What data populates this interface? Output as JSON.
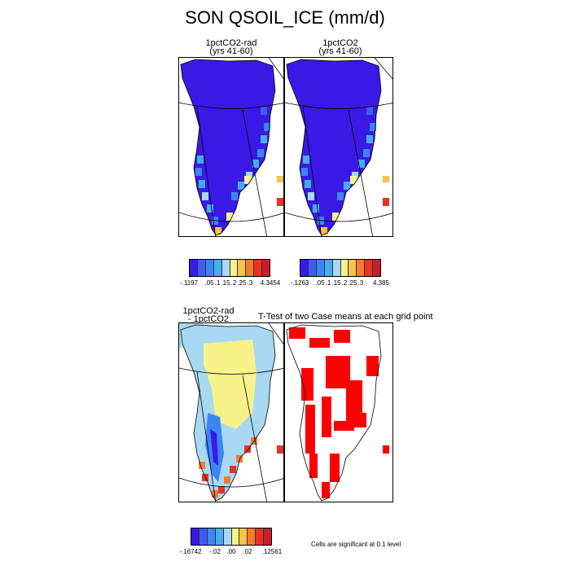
{
  "title": "SON QSOIL_ICE (mm/d)",
  "panels": {
    "top_left": {
      "title_line1": "1pctCO2-rad",
      "title_line2": "(yrs 41-60)"
    },
    "top_right": {
      "title_line1": "1pctCO2",
      "title_line2": "(yrs 41-60)"
    },
    "bottom_left": {
      "title_line1": "1pctCO2-rad",
      "title_line2": "- 1pctCO2"
    },
    "bottom_right": {
      "title": "T-Test of two Case means at each grid point"
    }
  },
  "legends": {
    "top_left": {
      "colors": [
        "#3a19e6",
        "#3f5cf0",
        "#3b86f4",
        "#43adf0",
        "#a8d8f2",
        "#f8f28a",
        "#f8c24d",
        "#f67b2d",
        "#e83224",
        "#c41f2a"
      ],
      "labels": [
        "-.1197",
        ".05",
        ".1",
        ".15",
        ".2",
        ".25",
        ".3",
        "4.3454"
      ]
    },
    "top_right": {
      "colors": [
        "#3a19e6",
        "#3f5cf0",
        "#3b86f4",
        "#43adf0",
        "#a8d8f2",
        "#f8f28a",
        "#f8c24d",
        "#f67b2d",
        "#e83224",
        "#c41f2a"
      ],
      "labels": [
        "-.1263",
        ".05",
        ".1",
        ".15",
        ".2",
        ".25",
        ".3",
        "4.385"
      ]
    },
    "bottom_left": {
      "colors": [
        "#3a19e6",
        "#3f5cf0",
        "#3b86f4",
        "#43adf0",
        "#a8d8f2",
        "#f8f28a",
        "#f8c24d",
        "#f67b2d",
        "#e83224",
        "#c41f2a"
      ],
      "labels": [
        "-.16742",
        "-.02",
        ".00",
        ".02",
        ".12561"
      ]
    }
  },
  "significance_note": "Cells are significant at 0.1 level",
  "colors": {
    "ice_low": "#3a19e6",
    "diff_mid": "#f8f28a",
    "significant": "#ff0000"
  }
}
